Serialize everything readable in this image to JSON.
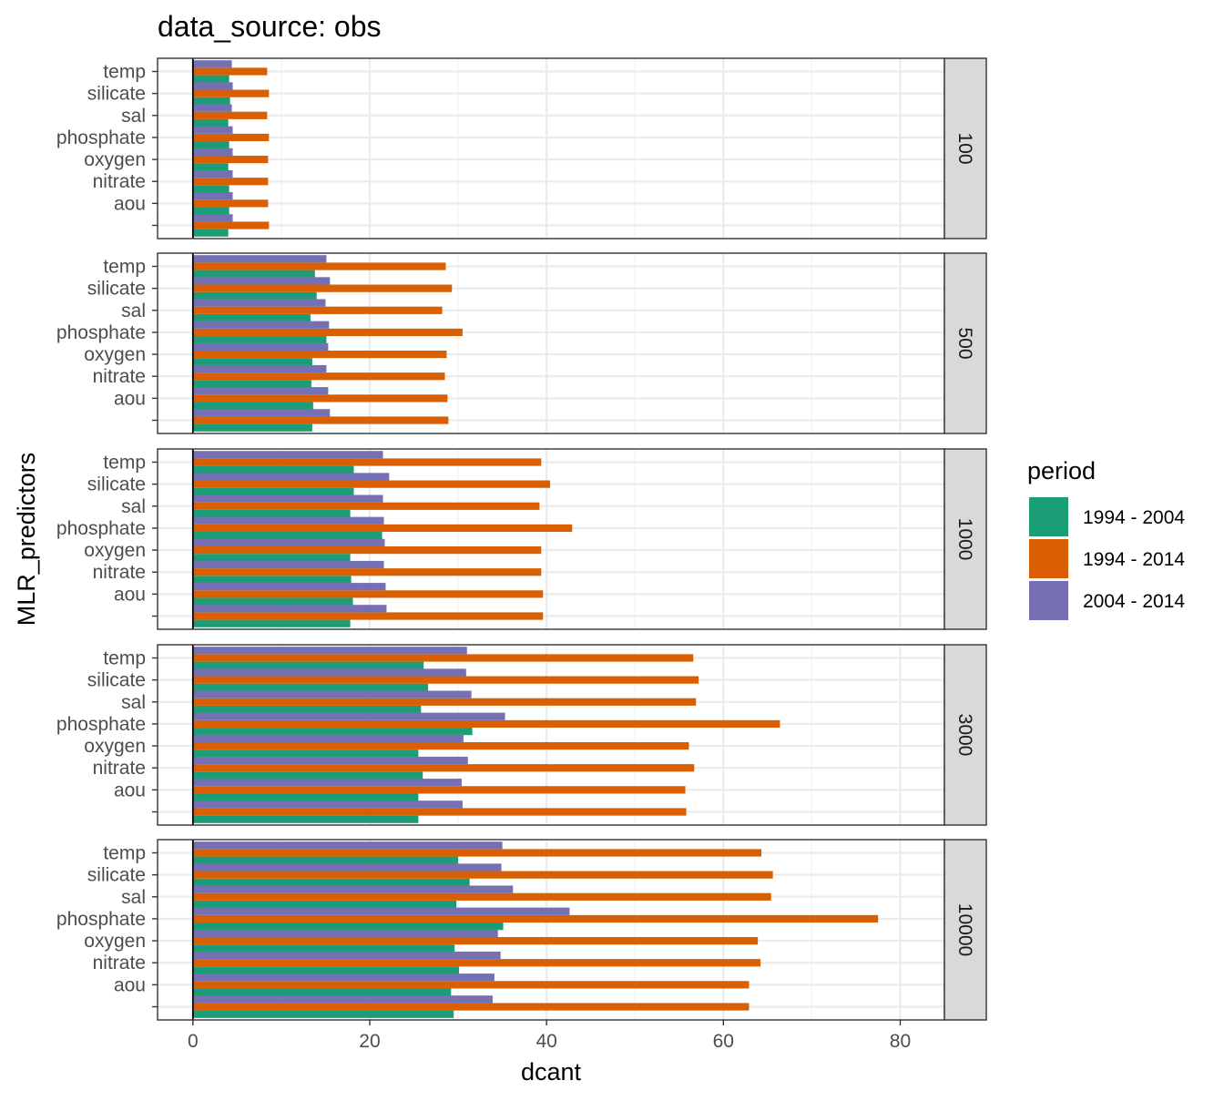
{
  "chart_data": {
    "type": "bar",
    "orientation": "horizontal",
    "title": "data_source: obs",
    "xlabel": "dcant",
    "ylabel": "MLR_predictors",
    "xlim": [
      -4,
      85
    ],
    "xticks": [
      0,
      20,
      40,
      60,
      80
    ],
    "grid": true,
    "vline_at": 0,
    "categories": [
      "temp",
      "silicate",
      "sal",
      "phosphate",
      "oxygen",
      "nitrate",
      "aou",
      ""
    ],
    "legend": {
      "title": "period",
      "position": "right",
      "entries": [
        {
          "label": "1994 - 2004",
          "color": "#1B9E77"
        },
        {
          "label": "1994 - 2014",
          "color": "#D95F02"
        },
        {
          "label": "2004 - 2014",
          "color": "#7570B3"
        }
      ]
    },
    "facets": [
      {
        "label": "100",
        "series": [
          {
            "name": "1994 - 2004",
            "values": [
              4.1,
              4.2,
              4.0,
              4.1,
              4.0,
              4.1,
              4.1,
              4.0
            ]
          },
          {
            "name": "1994 - 2014",
            "values": [
              8.4,
              8.6,
              8.4,
              8.6,
              8.5,
              8.5,
              8.5,
              8.6
            ]
          },
          {
            "name": "2004 - 2014",
            "values": [
              4.4,
              4.5,
              4.4,
              4.5,
              4.5,
              4.5,
              4.5,
              4.5
            ]
          }
        ]
      },
      {
        "label": "500",
        "series": [
          {
            "name": "1994 - 2004",
            "values": [
              13.8,
              14.0,
              13.3,
              15.1,
              13.5,
              13.4,
              13.6,
              13.5
            ]
          },
          {
            "name": "1994 - 2014",
            "values": [
              28.6,
              29.3,
              28.2,
              30.5,
              28.7,
              28.5,
              28.8,
              28.9
            ]
          },
          {
            "name": "2004 - 2014",
            "values": [
              15.1,
              15.5,
              15.0,
              15.4,
              15.3,
              15.1,
              15.3,
              15.5
            ]
          }
        ]
      },
      {
        "label": "1000",
        "series": [
          {
            "name": "1994 - 2004",
            "values": [
              18.2,
              18.2,
              17.8,
              21.4,
              17.8,
              17.9,
              18.1,
              17.8
            ]
          },
          {
            "name": "1994 - 2014",
            "values": [
              39.4,
              40.4,
              39.2,
              42.9,
              39.4,
              39.4,
              39.6,
              39.6
            ]
          },
          {
            "name": "2004 - 2014",
            "values": [
              21.5,
              22.2,
              21.5,
              21.6,
              21.7,
              21.6,
              21.8,
              21.9
            ]
          }
        ]
      },
      {
        "label": "3000",
        "series": [
          {
            "name": "1994 - 2004",
            "values": [
              26.1,
              26.6,
              25.8,
              31.6,
              25.5,
              26.0,
              25.5,
              25.5
            ]
          },
          {
            "name": "1994 - 2014",
            "values": [
              56.6,
              57.2,
              56.9,
              66.4,
              56.1,
              56.7,
              55.7,
              55.8
            ]
          },
          {
            "name": "2004 - 2014",
            "values": [
              31.0,
              30.9,
              31.5,
              35.3,
              30.6,
              31.1,
              30.4,
              30.5
            ]
          }
        ]
      },
      {
        "label": "10000",
        "series": [
          {
            "name": "1994 - 2004",
            "values": [
              30.0,
              31.3,
              29.8,
              35.1,
              29.6,
              30.1,
              29.2,
              29.5
            ]
          },
          {
            "name": "1994 - 2014",
            "values": [
              64.3,
              65.6,
              65.4,
              77.5,
              63.9,
              64.2,
              62.9,
              62.9
            ]
          },
          {
            "name": "2004 - 2014",
            "values": [
              35.0,
              34.9,
              36.2,
              42.6,
              34.5,
              34.8,
              34.1,
              33.9
            ]
          }
        ]
      }
    ]
  }
}
